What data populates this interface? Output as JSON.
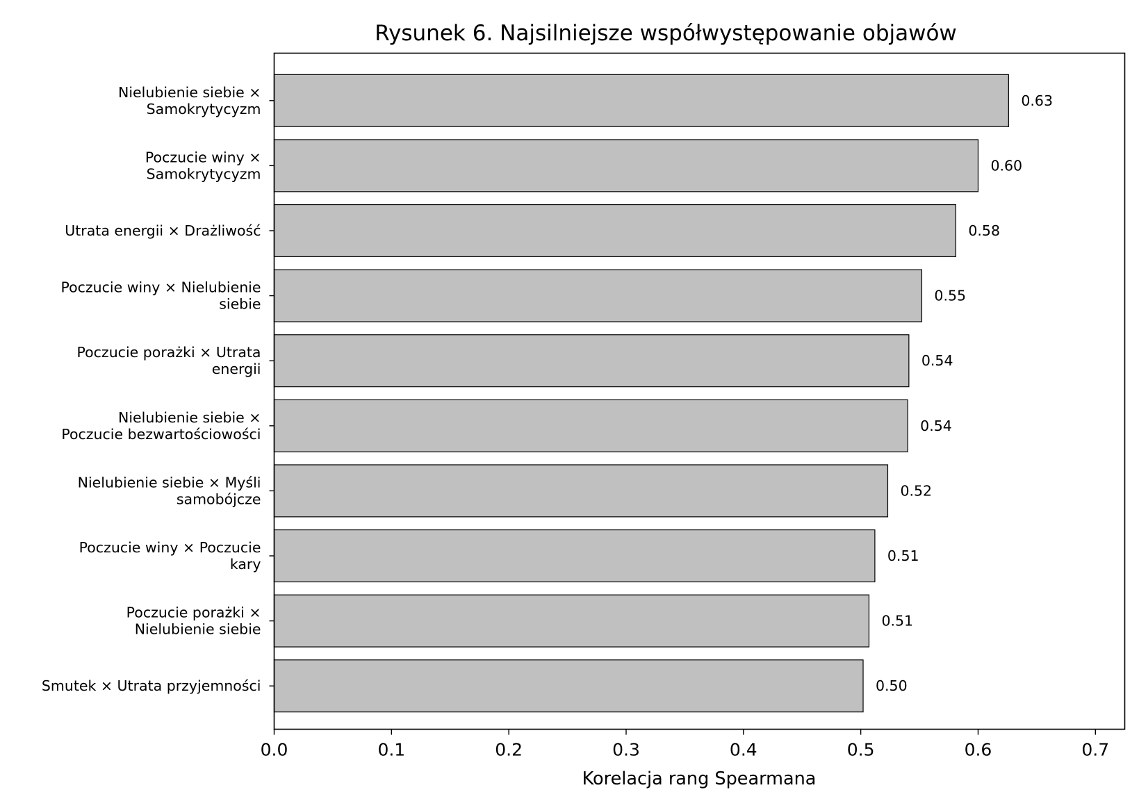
{
  "chart_data": {
    "type": "bar",
    "orientation": "horizontal",
    "title": "Rysunek 6. Najsilniejsze współwystępowanie objawów",
    "xlabel": "Korelacja rang Spearmana",
    "ylabel": "",
    "xlim": [
      0.0,
      0.725
    ],
    "xticks": [
      0.0,
      0.1,
      0.2,
      0.3,
      0.4,
      0.5,
      0.6,
      0.7
    ],
    "xtick_labels": [
      "0.0",
      "0.1",
      "0.2",
      "0.3",
      "0.4",
      "0.5",
      "0.6",
      "0.7"
    ],
    "grid": false,
    "legend": "none",
    "bar_color": "#c0c0c0",
    "edge_color": "#000000",
    "categories": [
      [
        "Nielubienie siebie ×",
        "Samokrytycyzm"
      ],
      [
        "Poczucie winy ×",
        "Samokrytycyzm"
      ],
      [
        "Utrata energii × Drażliwość"
      ],
      [
        "Poczucie winy × Nielubienie",
        "siebie"
      ],
      [
        "Poczucie porażki × Utrata",
        "energii"
      ],
      [
        "Nielubienie siebie ×",
        "Poczucie bezwartościowości"
      ],
      [
        "Nielubienie siebie × Myśli",
        "samobójcze"
      ],
      [
        "Poczucie winy × Poczucie",
        "kary"
      ],
      [
        "Poczucie porażki ×",
        "Nielubienie siebie"
      ],
      [
        "Smutek × Utrata przyjemności"
      ]
    ],
    "values": [
      0.626,
      0.6,
      0.581,
      0.552,
      0.541,
      0.54,
      0.523,
      0.512,
      0.507,
      0.502
    ],
    "value_labels": [
      "0.63",
      "0.60",
      "0.58",
      "0.55",
      "0.54",
      "0.54",
      "0.52",
      "0.51",
      "0.51",
      "0.50"
    ]
  }
}
